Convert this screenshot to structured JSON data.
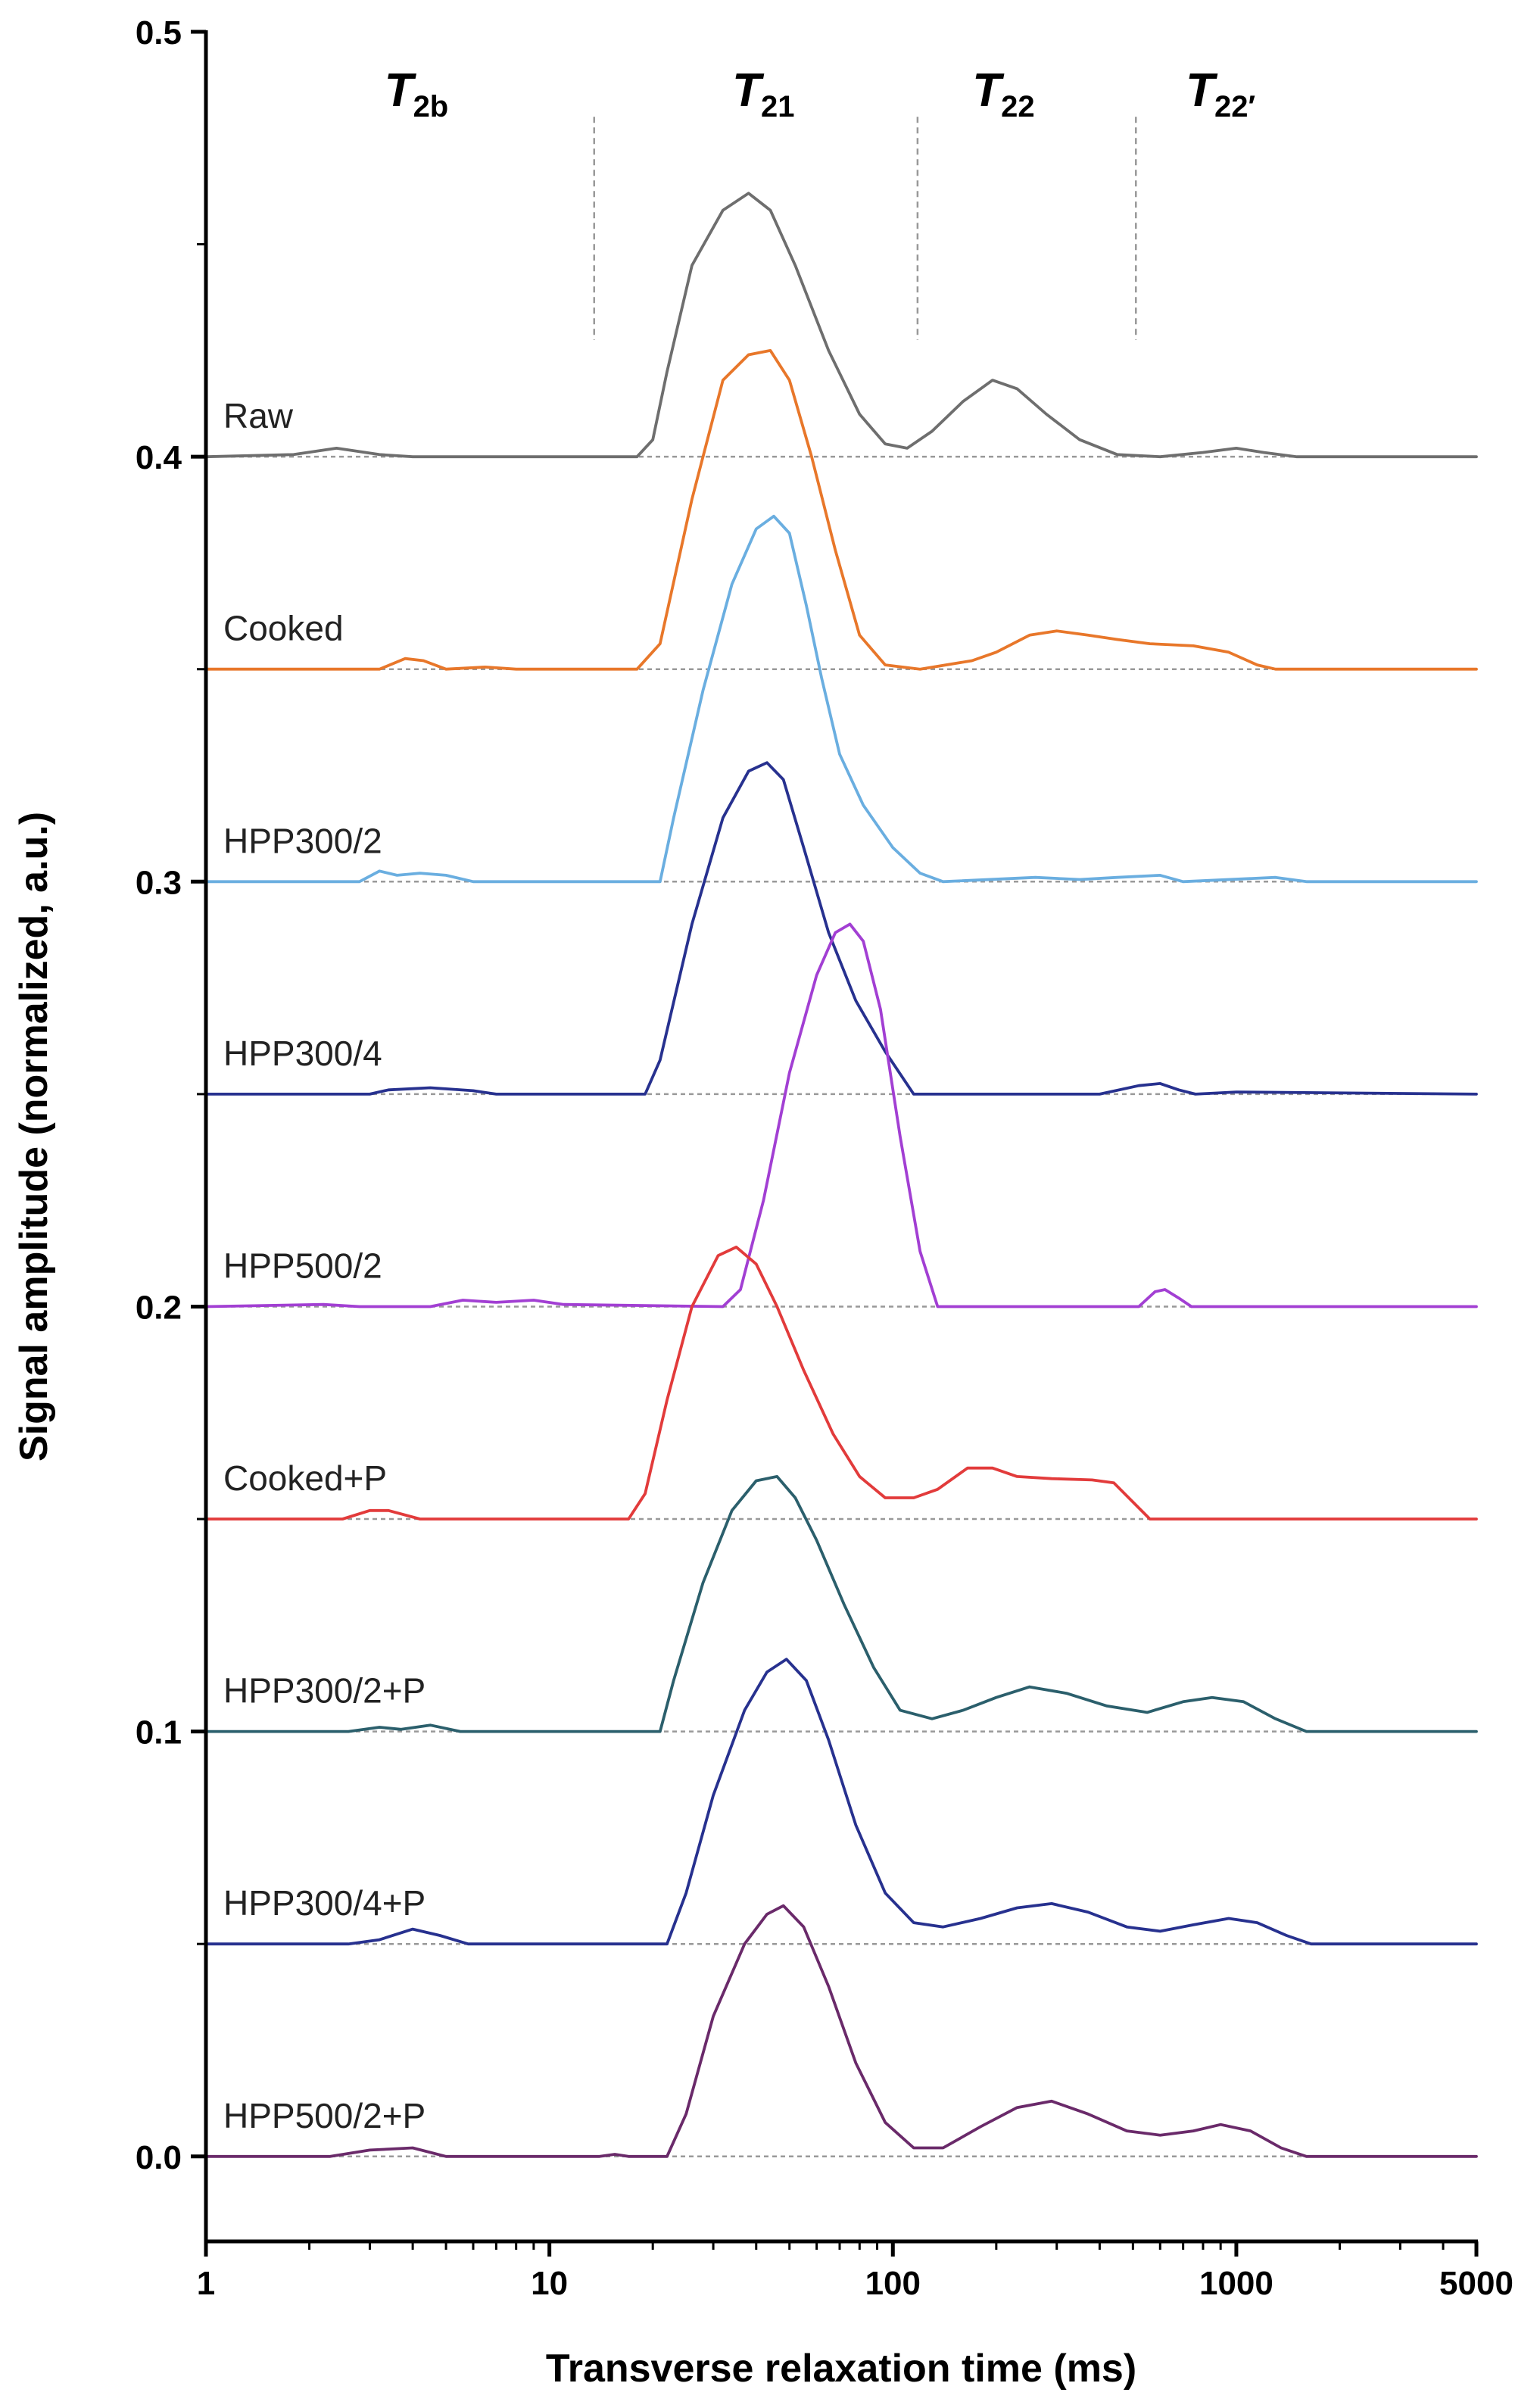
{
  "chart_data": {
    "type": "line",
    "xlabel": "Transverse relaxation time (ms)",
    "ylabel": "Signal amplitude (normalized, a.u.)",
    "xscale": "log",
    "xlim": [
      1,
      5000
    ],
    "ylim": [
      -0.02,
      0.5
    ],
    "x_ticks": [
      1,
      10,
      100,
      1000,
      5000
    ],
    "x_tick_labels": [
      "1",
      "10",
      "100",
      "1000",
      "5000"
    ],
    "y_ticks_major": [
      0.0,
      0.1,
      0.2,
      0.3,
      0.4,
      0.5
    ],
    "y_tick_labels": [
      "0.0",
      "0.1",
      "0.2",
      "0.3",
      "0.4",
      "0.5"
    ],
    "y_ticks_minor": [
      0.05,
      0.15,
      0.25,
      0.35,
      0.45
    ],
    "regions": [
      {
        "label": "T",
        "sub": "2b",
        "x_center": 4.1
      },
      {
        "label": "T",
        "sub": "21",
        "x_center": 42
      },
      {
        "label": "T",
        "sub": "22",
        "x_center": 210
      },
      {
        "label": "T",
        "sub": "22′",
        "x_center": 900
      }
    ],
    "region_dividers": [
      13.5,
      118,
      510
    ],
    "series": [
      {
        "name": "Raw",
        "color": "#6e6e6e",
        "offset": 0.4,
        "points": [
          [
            1,
            0
          ],
          [
            1.8,
            0.0005
          ],
          [
            2.4,
            0.002
          ],
          [
            3.2,
            0.0005
          ],
          [
            4,
            0
          ],
          [
            18,
            0
          ],
          [
            20,
            0.004
          ],
          [
            22,
            0.02
          ],
          [
            26,
            0.045
          ],
          [
            32,
            0.058
          ],
          [
            38,
            0.062
          ],
          [
            44,
            0.058
          ],
          [
            52,
            0.045
          ],
          [
            65,
            0.025
          ],
          [
            80,
            0.01
          ],
          [
            95,
            0.003
          ],
          [
            110,
            0.002
          ],
          [
            130,
            0.006
          ],
          [
            160,
            0.013
          ],
          [
            195,
            0.018
          ],
          [
            230,
            0.016
          ],
          [
            280,
            0.01
          ],
          [
            350,
            0.004
          ],
          [
            450,
            0.0005
          ],
          [
            600,
            0
          ],
          [
            800,
            0.001
          ],
          [
            1000,
            0.002
          ],
          [
            1200,
            0.001
          ],
          [
            1500,
            0
          ],
          [
            5000,
            0
          ]
        ]
      },
      {
        "name": "Cooked",
        "color": "#e8772a",
        "offset": 0.35,
        "points": [
          [
            1,
            0
          ],
          [
            3.2,
            0
          ],
          [
            3.8,
            0.0025
          ],
          [
            4.3,
            0.002
          ],
          [
            5,
            0
          ],
          [
            6.5,
            0.0005
          ],
          [
            8,
            0
          ],
          [
            18,
            0
          ],
          [
            21,
            0.006
          ],
          [
            26,
            0.04
          ],
          [
            32,
            0.068
          ],
          [
            38,
            0.074
          ],
          [
            44,
            0.075
          ],
          [
            50,
            0.068
          ],
          [
            58,
            0.05
          ],
          [
            68,
            0.028
          ],
          [
            80,
            0.008
          ],
          [
            95,
            0.001
          ],
          [
            120,
            0
          ],
          [
            170,
            0.002
          ],
          [
            200,
            0.004
          ],
          [
            250,
            0.008
          ],
          [
            300,
            0.009
          ],
          [
            370,
            0.008
          ],
          [
            450,
            0.007
          ],
          [
            560,
            0.006
          ],
          [
            750,
            0.0055
          ],
          [
            950,
            0.004
          ],
          [
            1150,
            0.001
          ],
          [
            1300,
            0
          ],
          [
            5000,
            0
          ]
        ]
      },
      {
        "name": "HPP300/2",
        "color": "#6aaee0",
        "offset": 0.3,
        "points": [
          [
            1,
            0
          ],
          [
            2.8,
            0
          ],
          [
            3.2,
            0.0025
          ],
          [
            3.6,
            0.0015
          ],
          [
            4.2,
            0.002
          ],
          [
            5,
            0.0015
          ],
          [
            6,
            0
          ],
          [
            21,
            0
          ],
          [
            23,
            0.015
          ],
          [
            28,
            0.045
          ],
          [
            34,
            0.07
          ],
          [
            40,
            0.083
          ],
          [
            45,
            0.086
          ],
          [
            50,
            0.082
          ],
          [
            56,
            0.065
          ],
          [
            62,
            0.048
          ],
          [
            70,
            0.03
          ],
          [
            82,
            0.018
          ],
          [
            100,
            0.008
          ],
          [
            120,
            0.002
          ],
          [
            140,
            0
          ],
          [
            260,
            0.001
          ],
          [
            350,
            0.0005
          ],
          [
            450,
            0.001
          ],
          [
            600,
            0.0015
          ],
          [
            700,
            0
          ],
          [
            1300,
            0.001
          ],
          [
            1600,
            0
          ],
          [
            5000,
            0
          ]
        ]
      },
      {
        "name": "HPP300/4",
        "color": "#27318f",
        "offset": 0.25,
        "points": [
          [
            1,
            0
          ],
          [
            3,
            0
          ],
          [
            3.4,
            0.001
          ],
          [
            4.5,
            0.0015
          ],
          [
            6,
            0.0008
          ],
          [
            7,
            0
          ],
          [
            19,
            0
          ],
          [
            21,
            0.008
          ],
          [
            26,
            0.04
          ],
          [
            32,
            0.065
          ],
          [
            38,
            0.076
          ],
          [
            43,
            0.078
          ],
          [
            48,
            0.074
          ],
          [
            55,
            0.058
          ],
          [
            65,
            0.038
          ],
          [
            78,
            0.022
          ],
          [
            95,
            0.01
          ],
          [
            115,
            0
          ],
          [
            400,
            0
          ],
          [
            520,
            0.002
          ],
          [
            600,
            0.0025
          ],
          [
            680,
            0.001
          ],
          [
            760,
            0
          ],
          [
            1000,
            0.0005
          ],
          [
            5000,
            0
          ]
        ]
      },
      {
        "name": "HPP500/2",
        "color": "#a23fd3",
        "offset": 0.2,
        "points": [
          [
            1,
            0
          ],
          [
            2.2,
            0.0005
          ],
          [
            2.8,
            0
          ],
          [
            4.5,
            0
          ],
          [
            5.6,
            0.0015
          ],
          [
            7,
            0.001
          ],
          [
            9,
            0.0015
          ],
          [
            11,
            0.0005
          ],
          [
            32,
            0
          ],
          [
            36,
            0.004
          ],
          [
            42,
            0.025
          ],
          [
            50,
            0.055
          ],
          [
            60,
            0.078
          ],
          [
            68,
            0.088
          ],
          [
            75,
            0.09
          ],
          [
            82,
            0.086
          ],
          [
            92,
            0.07
          ],
          [
            105,
            0.04
          ],
          [
            120,
            0.013
          ],
          [
            135,
            0
          ],
          [
            520,
            0
          ],
          [
            580,
            0.0035
          ],
          [
            620,
            0.004
          ],
          [
            680,
            0.002
          ],
          [
            740,
            0
          ],
          [
            5000,
            0
          ]
        ]
      },
      {
        "name": "Cooked+P",
        "color": "#e23b3b",
        "offset": 0.15,
        "points": [
          [
            1,
            0
          ],
          [
            2.5,
            0
          ],
          [
            3,
            0.002
          ],
          [
            3.4,
            0.002
          ],
          [
            4.2,
            0
          ],
          [
            17,
            0
          ],
          [
            19,
            0.006
          ],
          [
            22,
            0.028
          ],
          [
            26,
            0.05
          ],
          [
            31,
            0.062
          ],
          [
            35,
            0.064
          ],
          [
            40,
            0.06
          ],
          [
            46,
            0.05
          ],
          [
            55,
            0.035
          ],
          [
            67,
            0.02
          ],
          [
            80,
            0.01
          ],
          [
            95,
            0.005
          ],
          [
            115,
            0.005
          ],
          [
            135,
            0.007
          ],
          [
            165,
            0.012
          ],
          [
            195,
            0.012
          ],
          [
            230,
            0.01
          ],
          [
            290,
            0.0095
          ],
          [
            380,
            0.0092
          ],
          [
            440,
            0.0085
          ],
          [
            500,
            0.004
          ],
          [
            560,
            0
          ],
          [
            5000,
            0
          ]
        ]
      },
      {
        "name": "HPP300/2+P",
        "color": "#2b5f6c",
        "offset": 0.1,
        "points": [
          [
            1,
            0
          ],
          [
            2.6,
            0
          ],
          [
            3.2,
            0.001
          ],
          [
            3.7,
            0.0005
          ],
          [
            4.5,
            0.0015
          ],
          [
            5.5,
            0
          ],
          [
            21,
            0
          ],
          [
            23,
            0.012
          ],
          [
            28,
            0.035
          ],
          [
            34,
            0.052
          ],
          [
            40,
            0.059
          ],
          [
            46,
            0.06
          ],
          [
            52,
            0.055
          ],
          [
            60,
            0.045
          ],
          [
            72,
            0.03
          ],
          [
            88,
            0.015
          ],
          [
            105,
            0.005
          ],
          [
            130,
            0.003
          ],
          [
            160,
            0.005
          ],
          [
            200,
            0.008
          ],
          [
            250,
            0.0105
          ],
          [
            320,
            0.009
          ],
          [
            420,
            0.006
          ],
          [
            550,
            0.0045
          ],
          [
            700,
            0.007
          ],
          [
            850,
            0.008
          ],
          [
            1050,
            0.007
          ],
          [
            1300,
            0.003
          ],
          [
            1600,
            0
          ],
          [
            5000,
            0
          ]
        ]
      },
      {
        "name": "HPP300/4+P",
        "color": "#27318f",
        "offset": 0.05,
        "points": [
          [
            1,
            0
          ],
          [
            2.6,
            0
          ],
          [
            3.2,
            0.001
          ],
          [
            4,
            0.0035
          ],
          [
            4.8,
            0.002
          ],
          [
            5.8,
            0
          ],
          [
            22,
            0
          ],
          [
            25,
            0.012
          ],
          [
            30,
            0.035
          ],
          [
            37,
            0.055
          ],
          [
            43,
            0.064
          ],
          [
            49,
            0.067
          ],
          [
            56,
            0.062
          ],
          [
            65,
            0.048
          ],
          [
            78,
            0.028
          ],
          [
            95,
            0.012
          ],
          [
            115,
            0.005
          ],
          [
            140,
            0.004
          ],
          [
            180,
            0.006
          ],
          [
            230,
            0.0085
          ],
          [
            290,
            0.0095
          ],
          [
            370,
            0.0075
          ],
          [
            480,
            0.004
          ],
          [
            600,
            0.003
          ],
          [
            750,
            0.0045
          ],
          [
            950,
            0.006
          ],
          [
            1150,
            0.005
          ],
          [
            1400,
            0.002
          ],
          [
            1650,
            0
          ],
          [
            5000,
            0
          ]
        ]
      },
      {
        "name": "HPP500/2+P",
        "color": "#6a2a6a",
        "offset": 0.0,
        "points": [
          [
            1,
            0
          ],
          [
            2.3,
            0
          ],
          [
            3,
            0.0015
          ],
          [
            4,
            0.002
          ],
          [
            5,
            0
          ],
          [
            14,
            0
          ],
          [
            15.5,
            0.0005
          ],
          [
            17,
            0
          ],
          [
            22,
            0
          ],
          [
            25,
            0.01
          ],
          [
            30,
            0.033
          ],
          [
            37,
            0.05
          ],
          [
            43,
            0.057
          ],
          [
            48,
            0.059
          ],
          [
            55,
            0.054
          ],
          [
            65,
            0.04
          ],
          [
            78,
            0.022
          ],
          [
            95,
            0.008
          ],
          [
            115,
            0.002
          ],
          [
            140,
            0.002
          ],
          [
            180,
            0.007
          ],
          [
            230,
            0.0115
          ],
          [
            290,
            0.013
          ],
          [
            370,
            0.01
          ],
          [
            480,
            0.006
          ],
          [
            600,
            0.005
          ],
          [
            750,
            0.006
          ],
          [
            900,
            0.0075
          ],
          [
            1100,
            0.006
          ],
          [
            1350,
            0.002
          ],
          [
            1600,
            0
          ],
          [
            5000,
            0
          ]
        ]
      }
    ]
  }
}
